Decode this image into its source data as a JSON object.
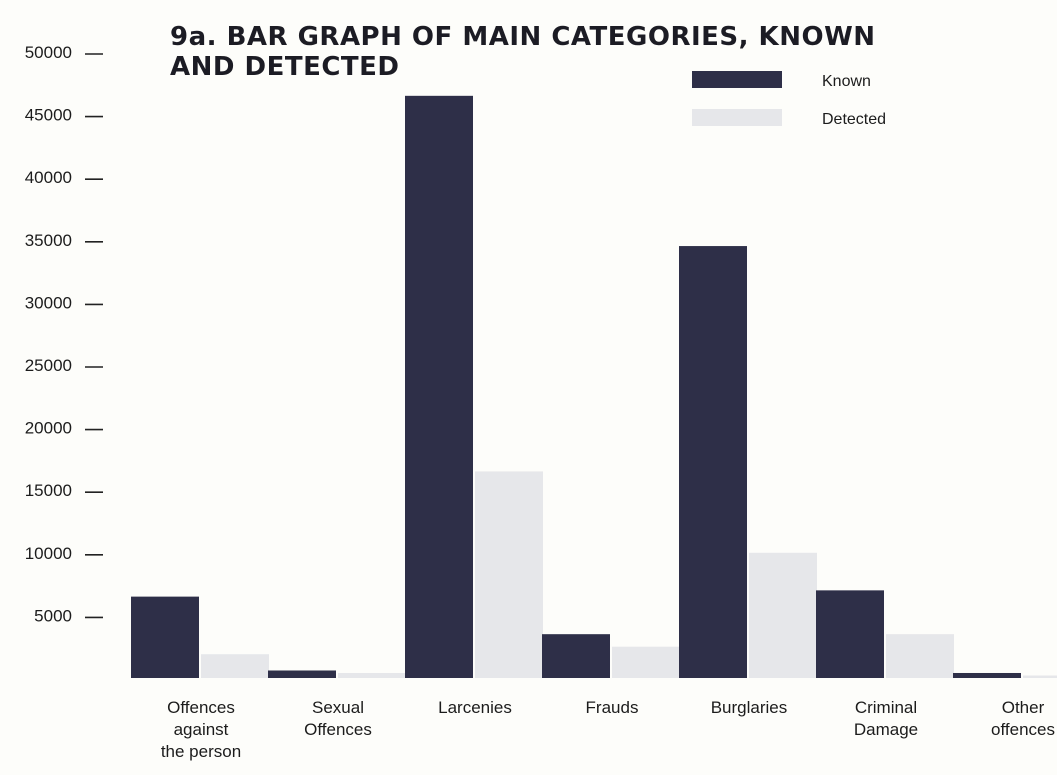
{
  "chart_data": {
    "type": "bar",
    "title_lines": [
      "9a. BAR GRAPH OF MAIN CATEGORIES, KNOWN",
      "AND DETECTED"
    ],
    "categories": [
      [
        "Offences",
        "against",
        "the person"
      ],
      [
        "Sexual",
        "Offences"
      ],
      [
        "Larcenies"
      ],
      [
        "Frauds"
      ],
      [
        "Burglaries"
      ],
      [
        "Criminal",
        "Damage"
      ],
      [
        "Other",
        "offences"
      ]
    ],
    "series": [
      {
        "name": "Known",
        "color": "#2e2f48",
        "values": [
          6500,
          600,
          46500,
          3500,
          34500,
          7000,
          400
        ]
      },
      {
        "name": "Detected",
        "color": "#e6e7ea",
        "values": [
          1900,
          400,
          16500,
          2500,
          10000,
          3500,
          200
        ]
      }
    ],
    "yticks": [
      "50000",
      "45000",
      "40000",
      "35000",
      "30000",
      "25000",
      "20000",
      "15000",
      "10000",
      "5000"
    ],
    "ylim": [
      0,
      50000
    ],
    "legend": "top-right",
    "grid": false
  }
}
